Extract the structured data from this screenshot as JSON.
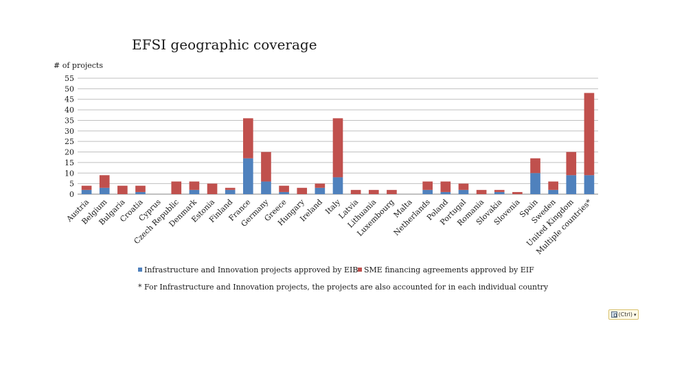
{
  "chart_data": {
    "type": "bar",
    "stacked": true,
    "title": "EFSI geographic coverage",
    "ylabel": "# of projects",
    "xlabel": "",
    "ylim": [
      0,
      55
    ],
    "yticks": [
      0,
      5,
      10,
      15,
      20,
      25,
      30,
      35,
      40,
      45,
      50,
      55
    ],
    "grid": "horizontal",
    "legend": "bottom",
    "categories": [
      "Austria",
      "Belgium",
      "Bulgaria",
      "Croatia",
      "Cyprus",
      "Czech Republic",
      "Denmark",
      "Estonia",
      "Finland",
      "France",
      "Germany",
      "Greece",
      "Hungary",
      "Ireland",
      "Italy",
      "Latvia",
      "Lithuania",
      "Luxembourg",
      "Malta",
      "Netherlands",
      "Poland",
      "Portugal",
      "Romania",
      "Slovakia",
      "Slovenia",
      "Spain",
      "Sweden",
      "United Kingdom",
      "Multiple countries*"
    ],
    "series": [
      {
        "name": "Infrastructure and Innovation projects approved by EIB",
        "color": "#4f81bd",
        "values": [
          2,
          3,
          0,
          1,
          0,
          0,
          2,
          0,
          2,
          17,
          6,
          1,
          0,
          3,
          8,
          0,
          0,
          0,
          0,
          2,
          1,
          2,
          0,
          1,
          0,
          10,
          2,
          9,
          9
        ]
      },
      {
        "name": "SME financing agreements approved by EIF",
        "color": "#c0504d",
        "values": [
          2,
          6,
          4,
          3,
          0,
          6,
          4,
          5,
          1,
          19,
          14,
          3,
          3,
          2,
          28,
          2,
          2,
          2,
          0,
          4,
          5,
          3,
          2,
          1,
          1,
          7,
          4,
          11,
          39
        ]
      }
    ],
    "footnote": "* For Infrastructure and Innovation projects, the projects are also accounted for in each individual country"
  },
  "paste_options": {
    "label": "(Ctrl)",
    "icon": "clipboard-icon"
  }
}
